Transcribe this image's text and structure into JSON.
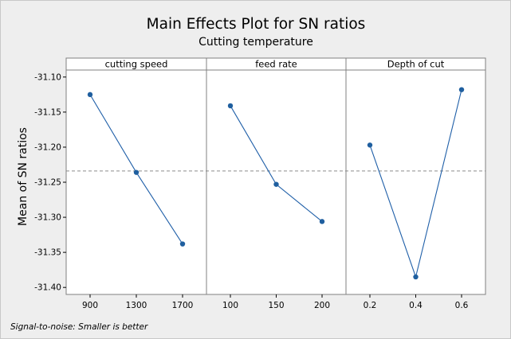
{
  "chart_data": {
    "type": "line",
    "title": "Main Effects Plot for SN ratios",
    "subtitle": "Cutting temperature",
    "ylabel": "Mean of SN ratios",
    "ylim": [
      -31.41,
      -31.09
    ],
    "yticks": [
      -31.1,
      -31.15,
      -31.2,
      -31.25,
      -31.3,
      -31.35,
      -31.4
    ],
    "ytick_labels": [
      "-31.10",
      "-31.15",
      "-31.20",
      "-31.25",
      "-31.30",
      "-31.35",
      "-31.40"
    ],
    "reference_line": -31.234,
    "note": "Signal-to-noise: Smaller is better",
    "panels": [
      {
        "name": "cutting speed",
        "x": [
          "900",
          "1300",
          "1700"
        ],
        "values": [
          -31.125,
          -31.236,
          -31.338
        ]
      },
      {
        "name": "feed rate",
        "x": [
          "100",
          "150",
          "200"
        ],
        "values": [
          -31.141,
          -31.253,
          -31.306
        ]
      },
      {
        "name": "Depth of cut",
        "x": [
          "0.2",
          "0.4",
          "0.6"
        ],
        "values": [
          -31.197,
          -31.385,
          -31.118
        ]
      }
    ],
    "colors": {
      "series": "#1f5fa8",
      "marker": "#1f5f9f",
      "reference": "#8c8c8c",
      "frame": "#808080",
      "plot_bg": "#ffffff"
    }
  }
}
